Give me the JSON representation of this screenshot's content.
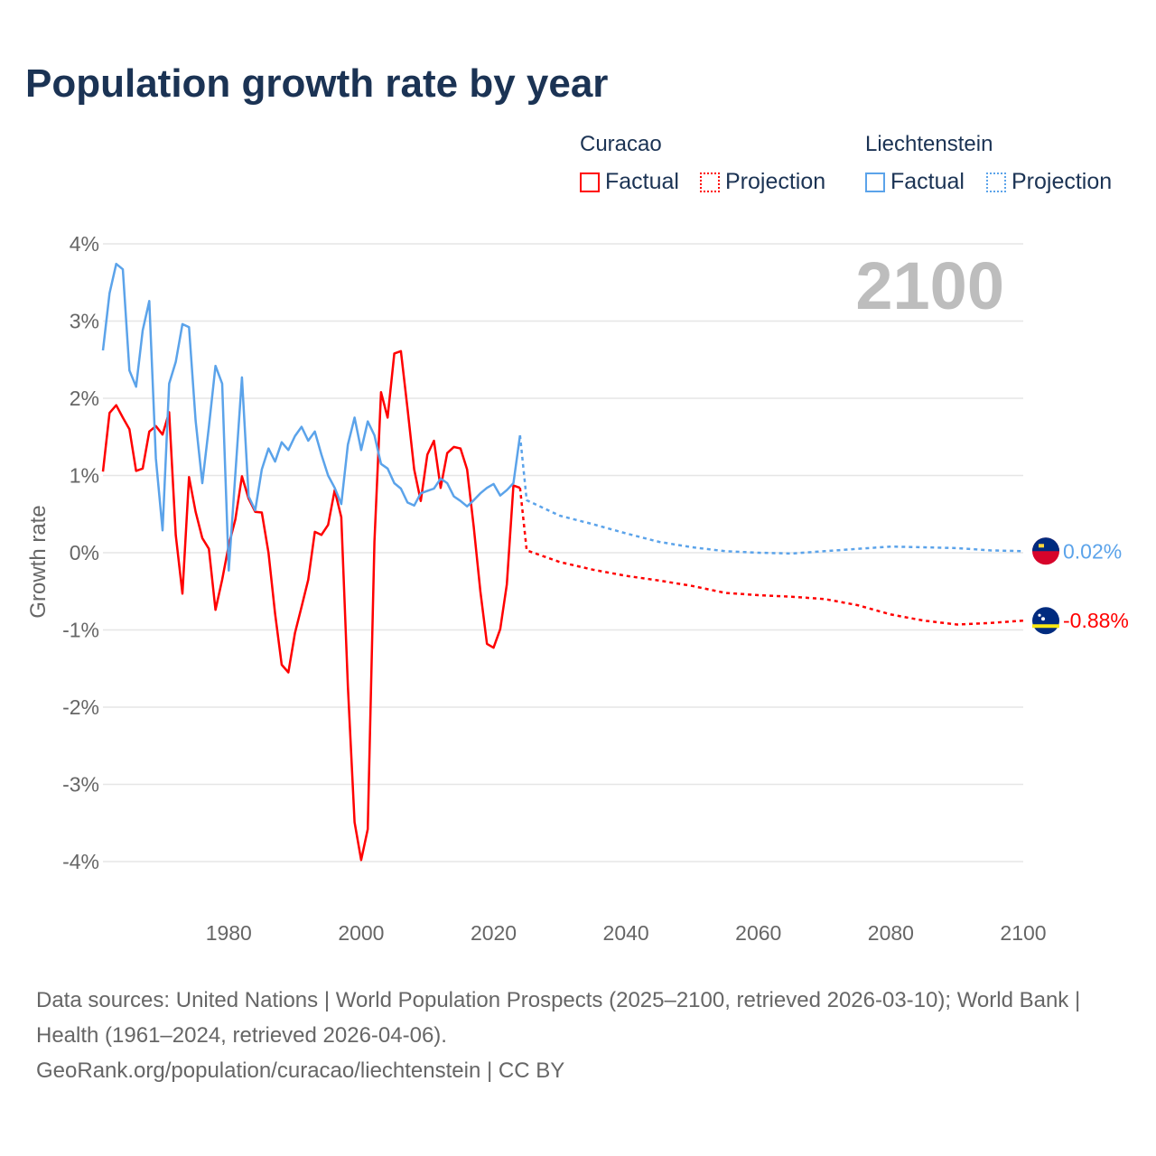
{
  "chart_data": {
    "type": "line",
    "title": "Population growth rate by year",
    "xlabel": "",
    "ylabel": "Growth rate",
    "xlim": [
      1961,
      2100
    ],
    "ylim": [
      -4,
      4
    ],
    "xticks": [
      1980,
      2000,
      2020,
      2040,
      2060,
      2080,
      2100
    ],
    "yticks": [
      4,
      3,
      2,
      1,
      0,
      -1,
      -2,
      -3,
      -4
    ],
    "ytick_labels": [
      "4%",
      "3%",
      "2%",
      "1%",
      "0%",
      "-1%",
      "-2%",
      "-3%",
      "-4%"
    ],
    "grid": true,
    "year_badge": "2100",
    "series": [
      {
        "name": "Curacao Factual",
        "country": "Curacao",
        "kind": "Factual",
        "color": "#ff0000",
        "dashed": false,
        "x": [
          1961,
          1962,
          1963,
          1964,
          1965,
          1966,
          1967,
          1968,
          1969,
          1970,
          1971,
          1972,
          1973,
          1974,
          1975,
          1976,
          1977,
          1978,
          1979,
          1980,
          1981,
          1982,
          1983,
          1984,
          1985,
          1986,
          1987,
          1988,
          1989,
          1990,
          1991,
          1992,
          1993,
          1994,
          1995,
          1996,
          1997,
          1998,
          1999,
          2000,
          2001,
          2002,
          2003,
          2004,
          2005,
          2006,
          2007,
          2008,
          2009,
          2010,
          2011,
          2012,
          2013,
          2014,
          2015,
          2016,
          2017,
          2018,
          2019,
          2020,
          2021,
          2022,
          2023,
          2024
        ],
        "y": [
          1.05,
          1.81,
          1.91,
          1.75,
          1.6,
          1.06,
          1.09,
          1.57,
          1.64,
          1.53,
          1.82,
          0.23,
          -0.53,
          0.98,
          0.53,
          0.19,
          0.05,
          -0.74,
          -0.35,
          0.1,
          0.43,
          0.99,
          0.7,
          0.53,
          0.52,
          0.0,
          -0.79,
          -1.45,
          -1.55,
          -1.04,
          -0.7,
          -0.35,
          0.27,
          0.23,
          0.36,
          0.81,
          0.46,
          -1.73,
          -3.49,
          -3.98,
          -3.58,
          0.14,
          2.08,
          1.75,
          2.58,
          2.61,
          1.87,
          1.08,
          0.67,
          1.27,
          1.45,
          0.84,
          1.29,
          1.37,
          1.35,
          1.08,
          0.34,
          -0.5,
          -1.18,
          -1.23,
          -0.99,
          -0.41,
          0.87,
          0.84
        ]
      },
      {
        "name": "Curacao Projection",
        "country": "Curacao",
        "kind": "Projection",
        "color": "#ff0000",
        "dashed": true,
        "x": [
          2024,
          2025,
          2030,
          2035,
          2040,
          2045,
          2050,
          2055,
          2060,
          2065,
          2070,
          2075,
          2080,
          2085,
          2090,
          2095,
          2100
        ],
        "y": [
          0.84,
          0.03,
          -0.12,
          -0.22,
          -0.3,
          -0.36,
          -0.43,
          -0.52,
          -0.55,
          -0.57,
          -0.6,
          -0.68,
          -0.8,
          -0.88,
          -0.93,
          -0.91,
          -0.88
        ]
      },
      {
        "name": "Liechtenstein Factual",
        "country": "Liechtenstein",
        "kind": "Factual",
        "color": "#5ba3ea",
        "dashed": false,
        "x": [
          1961,
          1962,
          1963,
          1964,
          1965,
          1966,
          1967,
          1968,
          1969,
          1970,
          1971,
          1972,
          1973,
          1974,
          1975,
          1976,
          1977,
          1978,
          1979,
          1980,
          1981,
          1982,
          1983,
          1984,
          1985,
          1986,
          1987,
          1988,
          1989,
          1990,
          1991,
          1992,
          1993,
          1994,
          1995,
          1996,
          1997,
          1998,
          1999,
          2000,
          2001,
          2002,
          2003,
          2004,
          2005,
          2006,
          2007,
          2008,
          2009,
          2010,
          2011,
          2012,
          2013,
          2014,
          2015,
          2016,
          2017,
          2018,
          2019,
          2020,
          2021,
          2022,
          2023,
          2024
        ],
        "y": [
          2.62,
          3.36,
          3.74,
          3.67,
          2.36,
          2.15,
          2.88,
          3.26,
          1.22,
          0.29,
          2.19,
          2.47,
          2.96,
          2.92,
          1.71,
          0.9,
          1.63,
          2.42,
          2.19,
          -0.23,
          1.02,
          2.27,
          0.73,
          0.55,
          1.08,
          1.35,
          1.18,
          1.43,
          1.33,
          1.51,
          1.63,
          1.45,
          1.57,
          1.27,
          1.0,
          0.84,
          0.63,
          1.4,
          1.75,
          1.33,
          1.7,
          1.52,
          1.15,
          1.09,
          0.9,
          0.83,
          0.65,
          0.61,
          0.77,
          0.8,
          0.83,
          0.96,
          0.9,
          0.73,
          0.67,
          0.6,
          0.68,
          0.77,
          0.84,
          0.89,
          0.74,
          0.81,
          0.9,
          1.52
        ]
      },
      {
        "name": "Liechtenstein Projection",
        "country": "Liechtenstein",
        "kind": "Projection",
        "color": "#5ba3ea",
        "dashed": true,
        "x": [
          2024,
          2025,
          2030,
          2035,
          2040,
          2045,
          2050,
          2055,
          2060,
          2065,
          2070,
          2075,
          2080,
          2085,
          2090,
          2095,
          2100
        ],
        "y": [
          1.52,
          0.68,
          0.48,
          0.37,
          0.25,
          0.14,
          0.07,
          0.02,
          0.0,
          -0.01,
          0.02,
          0.05,
          0.08,
          0.07,
          0.06,
          0.03,
          0.02
        ]
      }
    ],
    "end_labels": [
      {
        "country": "Liechtenstein",
        "value": 0.02,
        "label": "0.02%",
        "color": "#5ba3ea"
      },
      {
        "country": "Curacao",
        "value": -0.88,
        "label": "-0.88%",
        "color": "#ff0000"
      }
    ],
    "legend": {
      "placement": "top-right",
      "groups": [
        {
          "title": "Curacao",
          "items": [
            "Factual",
            "Projection"
          ],
          "color": "#ff0000"
        },
        {
          "title": "Liechtenstein",
          "items": [
            "Factual",
            "Projection"
          ],
          "color": "#5ba3ea"
        }
      ]
    }
  },
  "footer": {
    "sources": "Data sources: United Nations | World Population Prospects (2025–2100, retrieved 2026-03-10); World Bank | Health (1961–2024, retrieved 2026-04-06).",
    "link": "GeoRank.org/population/curacao/liechtenstein | CC BY"
  }
}
